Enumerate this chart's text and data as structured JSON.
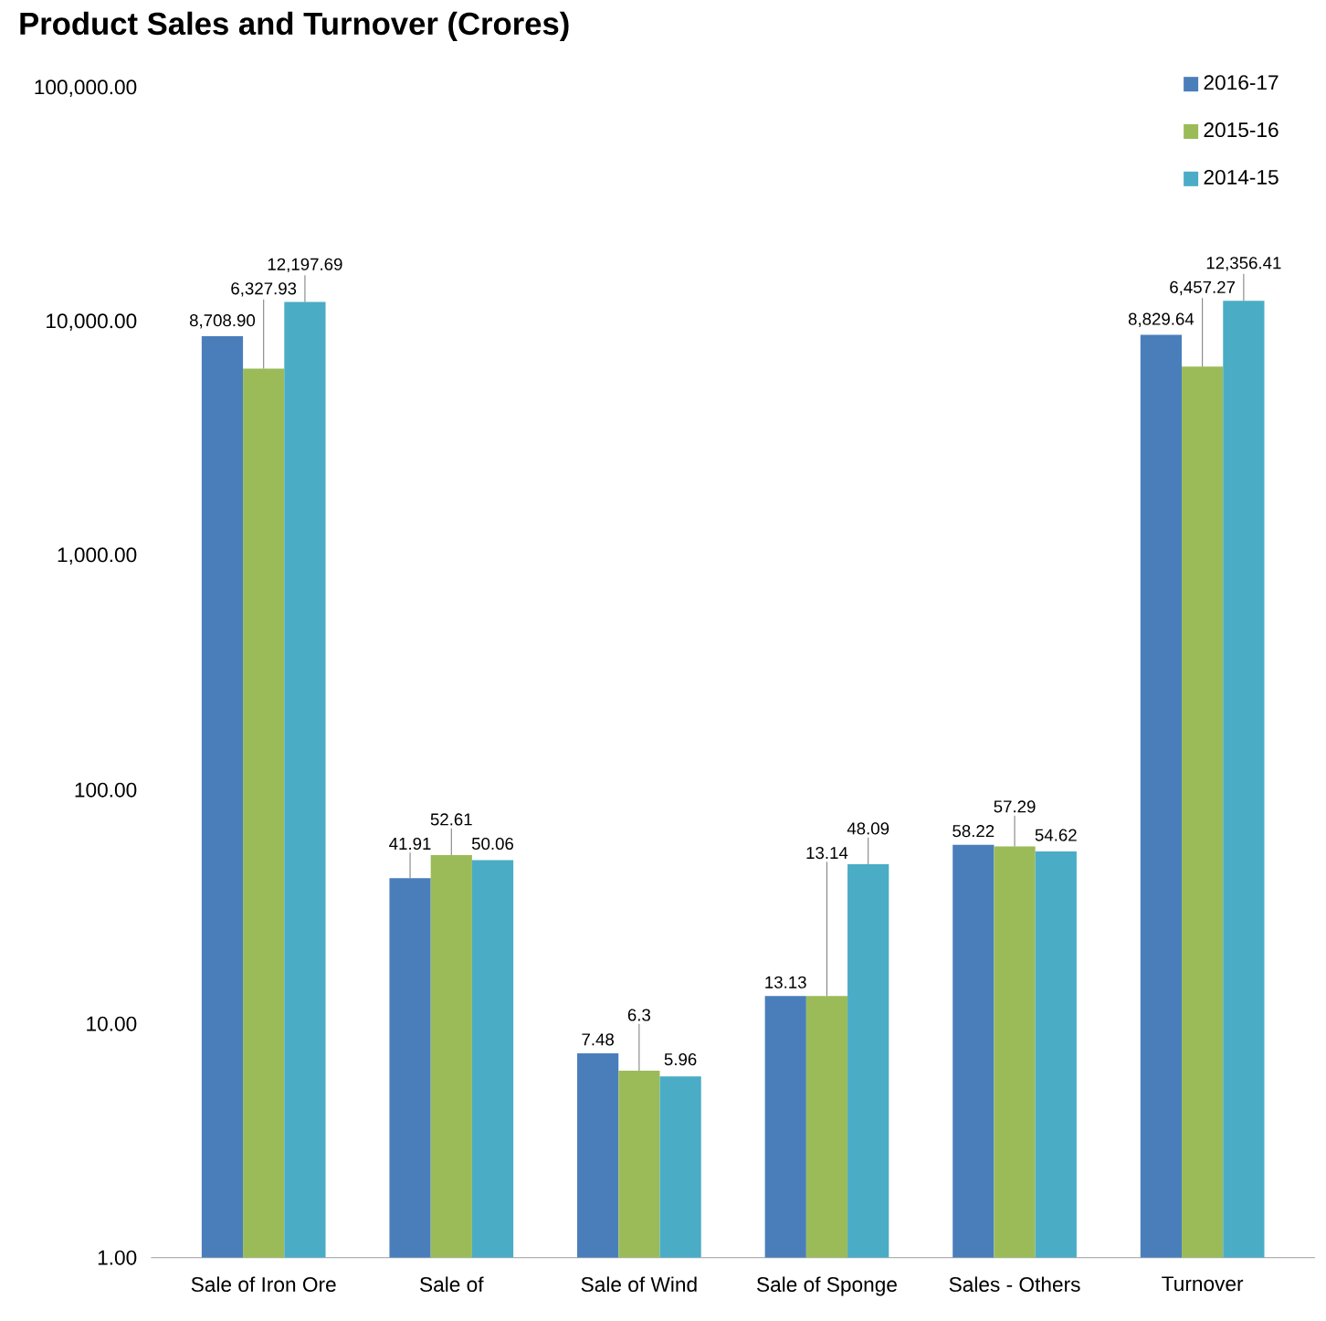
{
  "chart_data": {
    "type": "bar",
    "title": "Product Sales and Turnover (Crores)",
    "categories": [
      "Sale of Iron Ore",
      "Sale of",
      "Sale of Wind",
      "Sale of Sponge",
      "Sales - Others",
      "Turnover"
    ],
    "series": [
      {
        "name": "2016-17",
        "color": "#4a7ebb",
        "values": [
          8708.9,
          41.91,
          7.48,
          13.13,
          58.22,
          8829.64
        ],
        "value_labels": [
          "8,708.90",
          "41.91",
          "7.48",
          "13.13",
          "58.22",
          "8,829.64"
        ]
      },
      {
        "name": "2015-16",
        "color": "#9bbb59",
        "values": [
          6327.93,
          52.61,
          6.3,
          13.14,
          57.29,
          6457.27
        ],
        "value_labels": [
          "6,327.93",
          "52.61",
          "6.3",
          "13.14",
          "57.29",
          "6,457.27"
        ]
      },
      {
        "name": "2014-15",
        "color": "#4bacc6",
        "values": [
          12197.69,
          50.06,
          5.96,
          48.09,
          54.62,
          12356.41
        ],
        "value_labels": [
          "12,197.69",
          "50.06",
          "5.96",
          "48.09",
          "54.62",
          "12,356.41"
        ]
      }
    ],
    "log": true,
    "ylim": [
      1,
      100000
    ],
    "yticks": [
      {
        "value": 1,
        "label": "1.00"
      },
      {
        "value": 10,
        "label": "10.00"
      },
      {
        "value": 100,
        "label": "100.00"
      },
      {
        "value": 1000,
        "label": "1,000.00"
      },
      {
        "value": 10000,
        "label": "10,000.00"
      },
      {
        "value": 100000,
        "label": "100,000.00"
      }
    ],
    "legend": "top right"
  }
}
